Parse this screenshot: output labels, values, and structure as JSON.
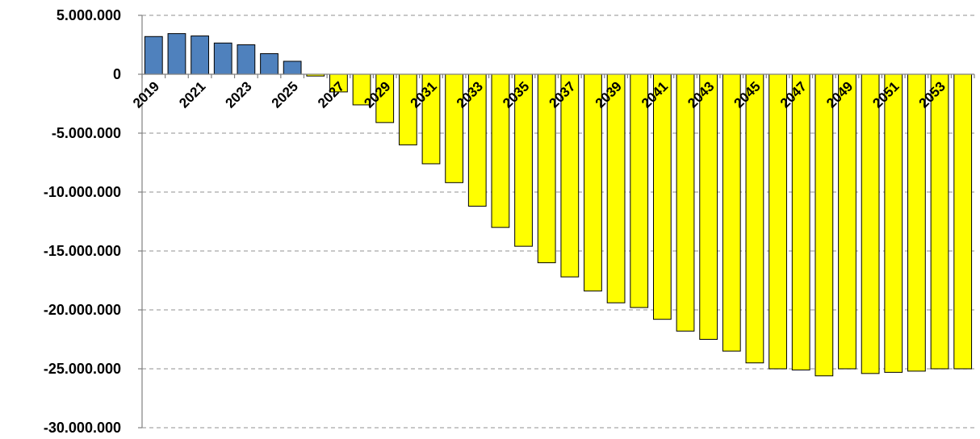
{
  "chart_data": {
    "type": "bar",
    "title": "",
    "xlabel": "",
    "ylabel": "",
    "ylim": [
      -30000000,
      5000000
    ],
    "yticks": [
      5000000,
      0,
      -5000000,
      -10000000,
      -15000000,
      -20000000,
      -25000000,
      -30000000
    ],
    "ytick_labels": [
      "5.000.000",
      "0",
      "-5.000.000",
      "-10.000.000",
      "-15.000.000",
      "-20.000.000",
      "-25.000.000",
      "-30.000.000"
    ],
    "grid": true,
    "categories": [
      "2019",
      "2020",
      "2021",
      "2022",
      "2023",
      "2024",
      "2025",
      "2026",
      "2027",
      "2028",
      "2029",
      "2030",
      "2031",
      "2032",
      "2033",
      "2034",
      "2035",
      "2036",
      "2037",
      "2038",
      "2039",
      "2040",
      "2041",
      "2042",
      "2043",
      "2044",
      "2045",
      "2046",
      "2047",
      "2048",
      "2049",
      "2050",
      "2051",
      "2052",
      "2053",
      "2054"
    ],
    "xtick_labels_shown": [
      "2019",
      "2021",
      "2023",
      "2025",
      "2027",
      "2029",
      "2031",
      "2033",
      "2035",
      "2037",
      "2039",
      "2041",
      "2043",
      "2045",
      "2047",
      "2049",
      "2051",
      "2053"
    ],
    "values": [
      3200000,
      3450000,
      3250000,
      2650000,
      2500000,
      1750000,
      1100000,
      -150000,
      -1500000,
      -2600000,
      -4100000,
      -6000000,
      -7600000,
      -9200000,
      -11200000,
      -13000000,
      -14600000,
      -16000000,
      -17200000,
      -18400000,
      -19400000,
      -19800000,
      -20800000,
      -21800000,
      -22500000,
      -23500000,
      -24500000,
      -25000000,
      -25100000,
      -25600000,
      -25000000,
      -25400000,
      -25300000,
      -25200000,
      -25000000,
      -25000000
    ],
    "colors": {
      "positive": "#4f81bd",
      "negative": "#ffff00",
      "outline": "#000000",
      "grid": "#a6a6a6"
    }
  }
}
